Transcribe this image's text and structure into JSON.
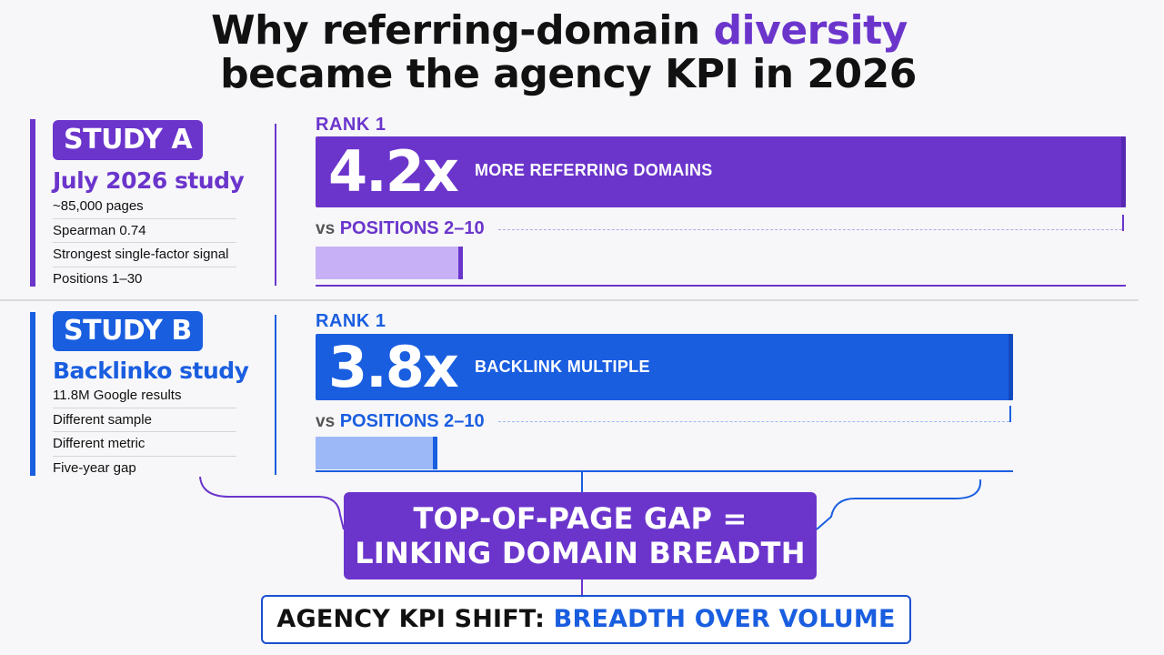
{
  "title": {
    "part1": "Why referring-domain ",
    "accent": "diversity",
    "line2": "became the agency KPI in 2026"
  },
  "colors": {
    "purple": "#6b35cc",
    "blue": "#1a5ee0",
    "purple_light": "#c7b0f5",
    "blue_light": "#9db8f7"
  },
  "study_a": {
    "badge": "STUDY A",
    "name": "July 2026 study",
    "facts": [
      "~85,000 pages",
      "Spearman 0.74",
      "Strongest single-factor signal",
      "Positions 1–30"
    ],
    "rank_label": "RANK 1",
    "multiple": "4.2x",
    "description": "MORE REFERRING DOMAINS",
    "vs_word": "vs",
    "vs_label": "POSITIONS 2–10"
  },
  "study_b": {
    "badge": "STUDY B",
    "name": "Backlinko study",
    "facts": [
      "11.8M Google results",
      "Different sample",
      "Different metric",
      "Five-year gap"
    ],
    "rank_label": "RANK 1",
    "multiple": "3.8x",
    "description": "BACKLINK MULTIPLE",
    "vs_word": "vs",
    "vs_label": "POSITIONS 2–10"
  },
  "conclusion": {
    "line1": "TOP-OF-PAGE GAP =",
    "line2": "LINKING DOMAIN BREADTH"
  },
  "kpi": {
    "prefix": "AGENCY KPI SHIFT: ",
    "highlight": "BREADTH OVER VOLUME"
  }
}
